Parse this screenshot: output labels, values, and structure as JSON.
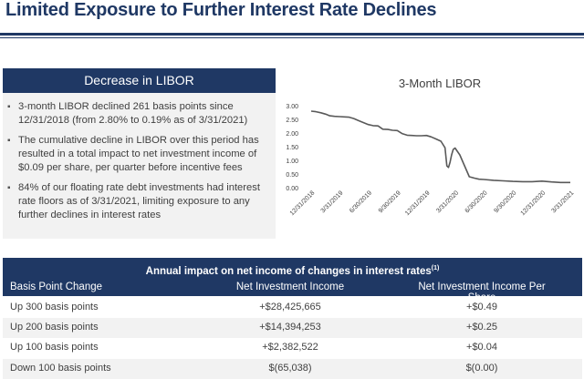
{
  "page": {
    "title": "Limited Exposure to Further Interest Rate Declines"
  },
  "panel": {
    "header": "Decrease in LIBOR",
    "bullets": [
      "3-month LIBOR declined 261 basis points since 12/31/2018 (from 2.80%  to 0.19% as of 3/31/2021)",
      "The cumulative decline in LIBOR over this period has resulted in a total impact to net investment income of $0.09 per share, per quarter before incentive fees",
      "84% of our floating rate debt investments had interest rate floors as of 3/31/2021, limiting exposure to any further declines in interest rates"
    ]
  },
  "chart_data": {
    "type": "line",
    "title": "3-Month  LIBOR",
    "xlabel": "",
    "ylabel": "",
    "ylim": [
      0,
      3.0
    ],
    "y_ticks": [
      "0.00",
      "0.50",
      "1.00",
      "1.50",
      "2.00",
      "2.50",
      "3.00"
    ],
    "x_ticks": [
      "12/31/2018",
      "3/31/2019",
      "6/30/2019",
      "9/30/2019",
      "12/31/2019",
      "3/31/2020",
      "6/30/2020",
      "9/30/2020",
      "12/31/2020",
      "3/31/2021"
    ],
    "grid": false,
    "color": "#595959",
    "series": [
      {
        "x": [
          "12/31/2018",
          "1/15/2019",
          "1/31/2019",
          "2/15/2019",
          "2/28/2019",
          "3/15/2019",
          "3/31/2019",
          "4/15/2019",
          "4/30/2019",
          "5/15/2019",
          "5/31/2019",
          "6/15/2019",
          "6/30/2019",
          "7/15/2019",
          "7/31/2019",
          "8/15/2019",
          "8/31/2019",
          "9/15/2019",
          "9/30/2019",
          "10/15/2019",
          "10/31/2019",
          "11/15/2019",
          "11/30/2019",
          "12/15/2019",
          "12/31/2019",
          "1/15/2020",
          "1/31/2020",
          "2/15/2020",
          "2/28/2020",
          "3/5/2020",
          "3/10/2020",
          "3/15/2020",
          "3/20/2020",
          "3/25/2020",
          "3/31/2020",
          "4/15/2020",
          "4/30/2020",
          "5/15/2020",
          "5/31/2020",
          "6/15/2020",
          "6/30/2020",
          "7/31/2020",
          "8/31/2020",
          "9/30/2020",
          "10/31/2020",
          "11/30/2020",
          "12/31/2020",
          "1/31/2021",
          "2/28/2021",
          "3/31/2021"
        ],
        "y": [
          2.8,
          2.78,
          2.74,
          2.69,
          2.63,
          2.61,
          2.6,
          2.59,
          2.58,
          2.53,
          2.45,
          2.38,
          2.31,
          2.27,
          2.26,
          2.14,
          2.13,
          2.1,
          2.09,
          1.98,
          1.92,
          1.91,
          1.9,
          1.9,
          1.91,
          1.86,
          1.78,
          1.7,
          1.46,
          0.8,
          0.74,
          0.93,
          1.2,
          1.4,
          1.45,
          1.2,
          0.8,
          0.4,
          0.35,
          0.31,
          0.3,
          0.27,
          0.25,
          0.23,
          0.22,
          0.22,
          0.24,
          0.21,
          0.19,
          0.19
        ]
      }
    ]
  },
  "table": {
    "header": "Annual impact on net income of changes in interest rates",
    "footnote": "(1)",
    "columns": [
      "Basis Point Change",
      "Net Investment Income",
      "Net Investment Income Per Share"
    ],
    "rows": [
      [
        "Up 300 basis points",
        "+$28,425,665",
        "+$0.49"
      ],
      [
        "Up 200 basis points",
        "+$14,394,253",
        "+$0.25"
      ],
      [
        "Up 100 basis points",
        "+$2,382,522",
        "+$0.04"
      ],
      [
        "Down 100 basis points",
        "$(65,038)",
        "$(0.00)"
      ]
    ]
  }
}
